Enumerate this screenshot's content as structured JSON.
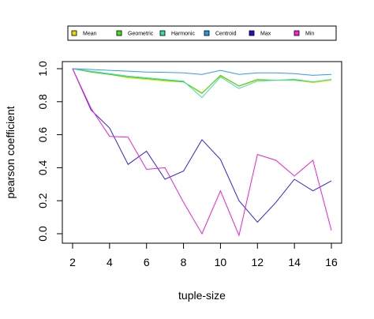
{
  "chart_data": {
    "type": "line",
    "xlabel": "tuple-size",
    "ylabel": "pearson coefficient",
    "xlim": [
      2,
      16
    ],
    "ylim": [
      0,
      1
    ],
    "xticks": [
      2,
      4,
      6,
      8,
      10,
      12,
      14,
      16
    ],
    "yticks": [
      0.0,
      0.2,
      0.4,
      0.6,
      0.8,
      1.0
    ],
    "ytick_labels": [
      "0.0",
      "0.2",
      "0.4",
      "0.6",
      "0.8",
      "1.0"
    ],
    "grid": false,
    "legend_position": "top",
    "x": [
      2,
      3,
      4,
      5,
      6,
      7,
      8,
      9,
      10,
      11,
      12,
      13,
      14,
      15,
      16
    ],
    "series": [
      {
        "name": "Mean",
        "color": "#e6e600",
        "legend_fill": "#e6d800",
        "values": [
          1.0,
          0.98,
          0.965,
          0.945,
          0.935,
          0.925,
          0.92,
          0.855,
          0.955,
          0.895,
          0.93,
          0.93,
          0.93,
          0.915,
          0.93
        ]
      },
      {
        "name": "Geometric",
        "color": "#33cc33",
        "legend_fill": "#44dd22",
        "values": [
          1.0,
          0.98,
          0.965,
          0.95,
          0.94,
          0.93,
          0.92,
          0.85,
          0.96,
          0.895,
          0.935,
          0.93,
          0.935,
          0.92,
          0.935
        ]
      },
      {
        "name": "Harmonic",
        "color": "#44ddaa",
        "legend_fill": "#33ddaa",
        "values": [
          1.0,
          0.985,
          0.97,
          0.955,
          0.945,
          0.935,
          0.925,
          0.825,
          0.95,
          0.88,
          0.925,
          0.93,
          0.93,
          0.92,
          0.935
        ]
      },
      {
        "name": "Centroid",
        "color": "#3399ee",
        "legend_fill": "#2299ee",
        "values": [
          1.0,
          0.995,
          0.99,
          0.985,
          0.98,
          0.978,
          0.975,
          0.965,
          0.99,
          0.965,
          0.975,
          0.975,
          0.97,
          0.96,
          0.965
        ]
      },
      {
        "name": "Max",
        "color": "#3322dd",
        "legend_fill": "#2211cc",
        "values": [
          1.0,
          0.75,
          0.64,
          0.42,
          0.5,
          0.33,
          0.38,
          0.57,
          0.45,
          0.2,
          0.07,
          0.19,
          0.33,
          0.26,
          0.32
        ]
      },
      {
        "name": "Min",
        "color": "#ee22cc",
        "legend_fill": "#ff22cc",
        "values": [
          1.0,
          0.76,
          0.59,
          0.585,
          0.39,
          0.4,
          0.19,
          0.0,
          0.26,
          -0.01,
          0.48,
          0.445,
          0.35,
          0.445,
          0.02
        ]
      }
    ]
  }
}
